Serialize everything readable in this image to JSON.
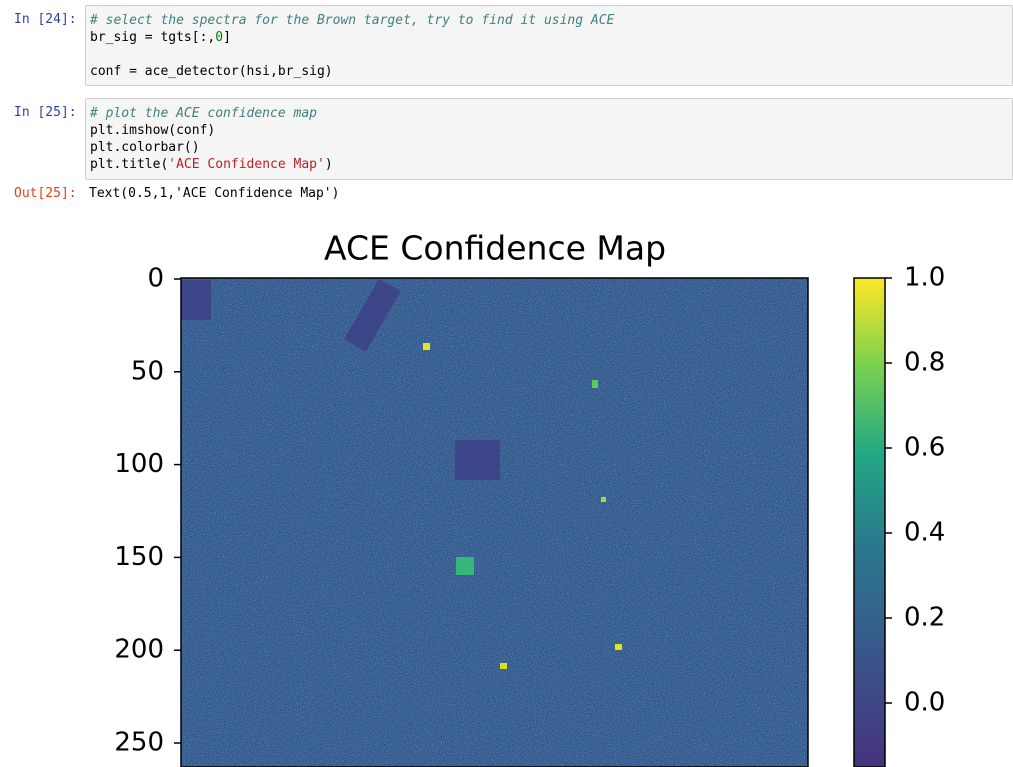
{
  "cells": [
    {
      "prompt": "In [24]:",
      "code": "# select the spectra for the Brown target, try to find it using ACE\nbr_sig = tgts[:,0]\n\nconf = ace_detector(hsi,br_sig)"
    },
    {
      "prompt": "In [25]:",
      "code": "# plot the ACE confidence map\nplt.imshow(conf)\nplt.colorbar()\nplt.title('ACE Confidence Map')"
    }
  ],
  "output": {
    "prompt": "Out[25]:",
    "text": "Text(0.5,1,'ACE Confidence Map')",
    "figure": {
      "title": "ACE Confidence Map",
      "yticks": [
        0,
        50,
        100,
        150,
        200,
        250
      ],
      "colorbar_ticks": [
        {
          "value": 1.0,
          "label": "1.0"
        },
        {
          "value": 0.8,
          "label": "0.8"
        },
        {
          "value": 0.6,
          "label": "0.6"
        },
        {
          "value": 0.4,
          "label": "0.4"
        },
        {
          "value": 0.2,
          "label": "0.2"
        },
        {
          "value": 0.0,
          "label": "0.0"
        }
      ]
    }
  }
}
